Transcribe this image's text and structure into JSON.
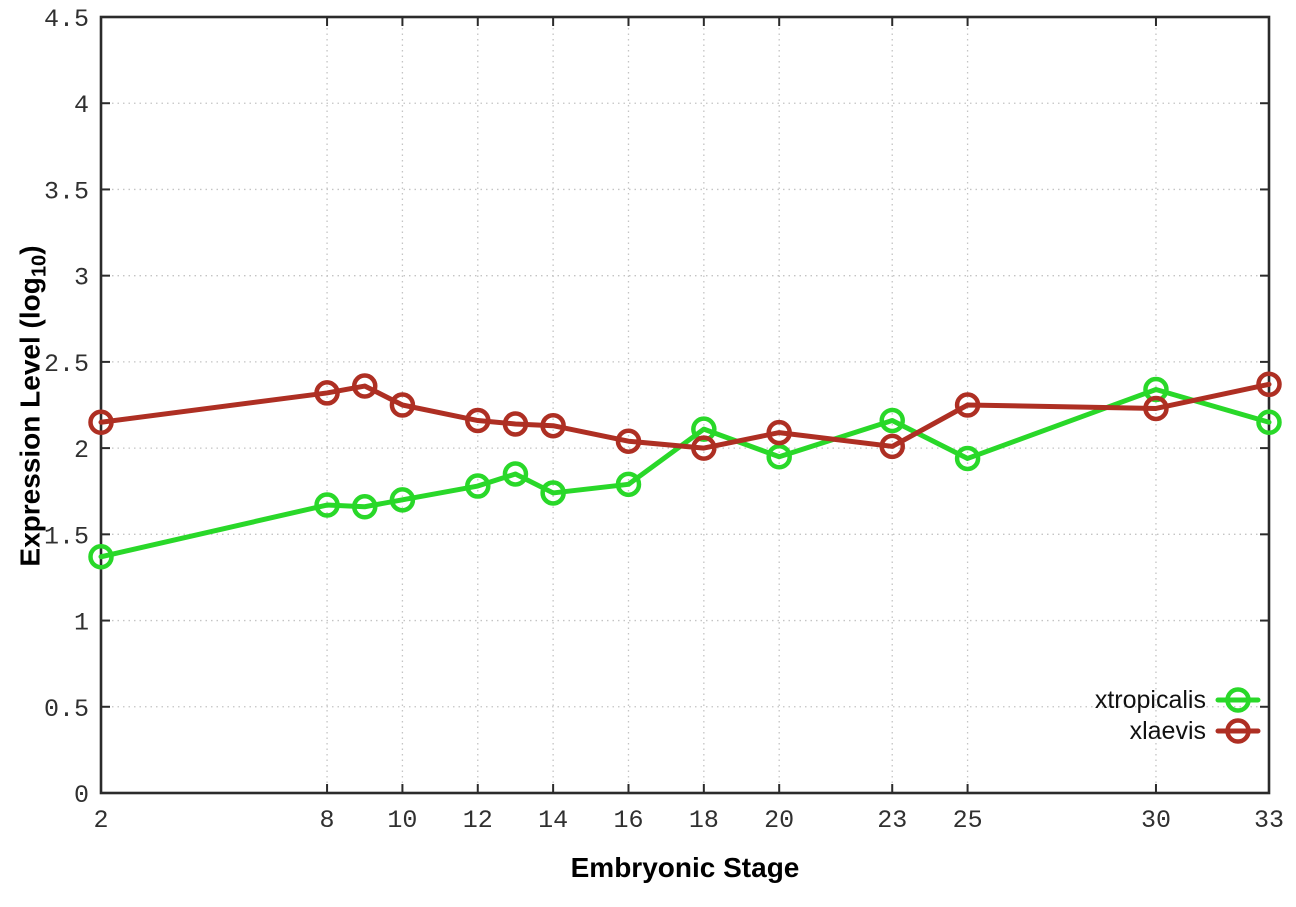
{
  "chart_data": {
    "type": "line",
    "title": "",
    "xlabel": "Embryonic Stage",
    "ylabel": "Expression Level (log10)",
    "ylabel_parts": {
      "prefix": "Expression Level (log",
      "sub": "10",
      "suffix": ")"
    },
    "xlim": [
      2,
      33
    ],
    "ylim": [
      0,
      4.5
    ],
    "grid": true,
    "legend_position": "bottom-right",
    "x": [
      2,
      8,
      9,
      10,
      12,
      13,
      14,
      16,
      18,
      20,
      23,
      25,
      30,
      33
    ],
    "xticks": [
      2,
      8,
      10,
      12,
      14,
      16,
      18,
      20,
      23,
      25,
      30,
      33
    ],
    "xtick_labels": [
      "2",
      "8",
      "10",
      "12",
      "14",
      "16",
      "18",
      "20",
      "23",
      "25",
      "30",
      "33"
    ],
    "yticks": [
      0,
      0.5,
      1,
      1.5,
      2,
      2.5,
      3,
      3.5,
      4,
      4.5
    ],
    "ytick_labels": [
      "0",
      "0.5",
      "1",
      "1.5",
      "2",
      "2.5",
      "3",
      "3.5",
      "4",
      "4.5"
    ],
    "series": [
      {
        "name": "xtropicalis",
        "color": "#29d829",
        "marker": "open-circle",
        "values": [
          1.37,
          1.67,
          1.66,
          1.7,
          1.78,
          1.85,
          1.74,
          1.79,
          2.11,
          1.95,
          2.16,
          1.94,
          2.34,
          2.15
        ]
      },
      {
        "name": "xlaevis",
        "color": "#ae2f23",
        "marker": "open-circle",
        "values": [
          2.15,
          2.32,
          2.36,
          2.25,
          2.16,
          2.14,
          2.13,
          2.04,
          2.0,
          2.09,
          2.01,
          2.25,
          2.23,
          2.37
        ]
      }
    ],
    "colors": {
      "background": "#ffffff",
      "axis": "#2b2b2b",
      "grid": "#c4c4c4",
      "tick_label": "#303030"
    }
  }
}
